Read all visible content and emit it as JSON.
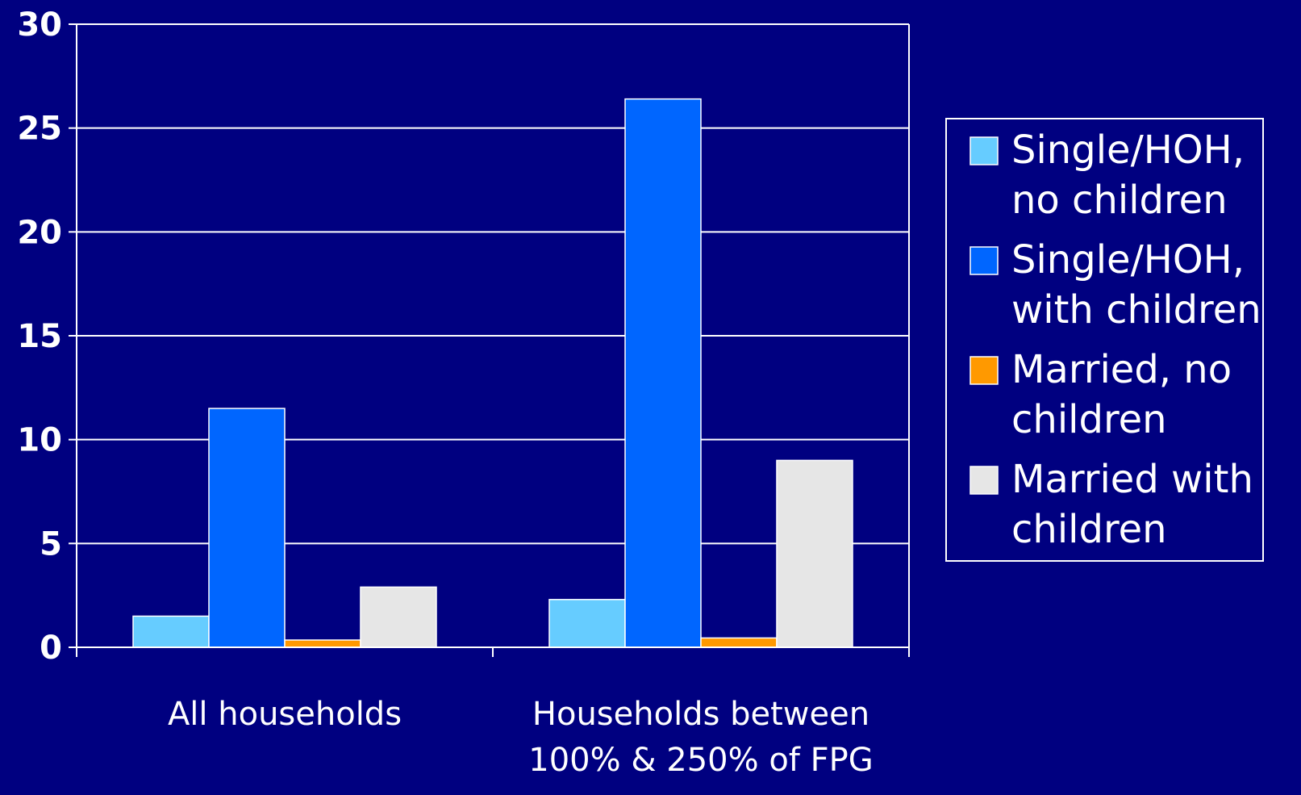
{
  "chart_data": {
    "type": "bar",
    "categories": [
      "All households",
      "Households between 100% & 250% of FPG"
    ],
    "series": [
      {
        "name": "Single/HOH, no children",
        "values": [
          1.5,
          2.3
        ]
      },
      {
        "name": "Single/HOH, with children",
        "values": [
          11.5,
          26.4
        ]
      },
      {
        "name": "Married, no children",
        "values": [
          0.35,
          0.45
        ]
      },
      {
        "name": "Married with children",
        "values": [
          2.9,
          9.0
        ]
      }
    ],
    "title": "",
    "xlabel": "",
    "ylabel": "",
    "ylim": [
      0,
      30
    ],
    "yticks": [
      "0",
      "5",
      "10",
      "15",
      "20",
      "25",
      "30"
    ],
    "grid": true,
    "legend_position": "right",
    "category_labels": [
      [
        "All households"
      ],
      [
        "Households between",
        "100% & 250% of FPG"
      ]
    ],
    "legend_labels": [
      [
        "Single/HOH,",
        "no children"
      ],
      [
        "Single/HOH,",
        "with children"
      ],
      [
        "Married, no",
        "children"
      ],
      [
        "Married with",
        "children"
      ]
    ]
  },
  "colors": {
    "background": "#000080",
    "axis": "#FFFFFF",
    "grid": "#FFFFFF",
    "text": "#FFFFFF",
    "series": [
      "#66CCFF",
      "#0066FF",
      "#FF9900",
      "#E6E6E6"
    ]
  }
}
